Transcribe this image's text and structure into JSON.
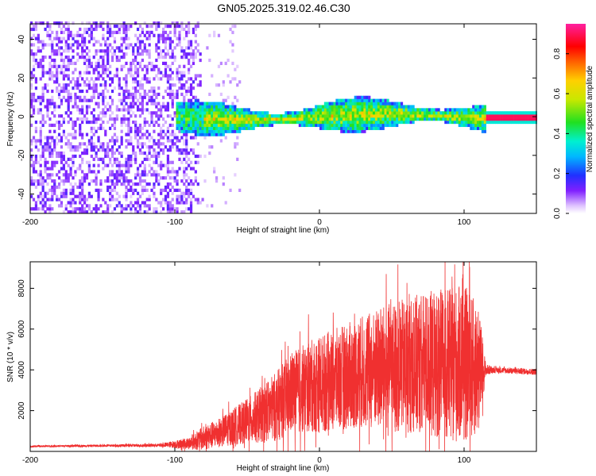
{
  "figure_title": "GN05.2025.319.02.46.C30",
  "chart_data": [
    {
      "type": "heatmap",
      "title": "GN05.2025.319.02.46.C30",
      "xlabel": "Height of straight line (km)",
      "ylabel": "Frequency (Hz)",
      "xlim": [
        -200,
        150
      ],
      "ylim": [
        -50,
        48
      ],
      "x_ticks": [
        -200,
        -100,
        0,
        100
      ],
      "x_tick_labels": [
        "-200",
        "-100",
        "0",
        "100"
      ],
      "y_ticks": [
        -40,
        -20,
        0,
        20,
        40
      ],
      "y_tick_labels": [
        "-40",
        "-20",
        "0",
        "20",
        "40"
      ],
      "colorbar": {
        "label": "Normalized spectral amplitude",
        "range": [
          0,
          0.95
        ],
        "ticks": [
          0.0,
          0.2,
          0.4,
          0.6,
          0.8
        ],
        "tick_labels": [
          "0.0",
          "0.2",
          "0.4",
          "0.6",
          "0.8"
        ],
        "colormap": "rainbow (white-violet-blue-cyan-green-yellow-orange-red-magenta)"
      },
      "description_regions": [
        {
          "x_range": [
            -200,
            -80
          ],
          "freq_range": [
            -50,
            48
          ],
          "amplitude": 0.05,
          "pattern": "broadband noise"
        },
        {
          "x_range": [
            -100,
            115
          ],
          "freq_center": 0,
          "freq_halfwidth": 6,
          "amplitude": 0.3,
          "pattern": "signal band"
        },
        {
          "x_range": [
            115,
            150
          ],
          "freq_center": 0,
          "freq_halfwidth": 1.5,
          "amplitude": 0.95,
          "pattern": "strong narrow line"
        }
      ]
    },
    {
      "type": "line",
      "xlabel": "Height of straight line (km)",
      "ylabel": "SNR (10 * v/v)",
      "xlim": [
        -200,
        150
      ],
      "ylim": [
        0,
        9300
      ],
      "x_ticks": [
        -200,
        -100,
        0,
        100
      ],
      "x_tick_labels": [
        "-200",
        "-100",
        "0",
        "100"
      ],
      "y_ticks": [
        2000,
        4000,
        6000,
        8000
      ],
      "y_tick_labels": [
        "2000",
        "4000",
        "6000",
        "8000"
      ],
      "series": [
        {
          "name": "SNR",
          "color": "#f03030",
          "envelope_x": [
            -200,
            -150,
            -110,
            -90,
            -80,
            -70,
            -60,
            -50,
            -40,
            -30,
            -20,
            -10,
            0,
            10,
            20,
            30,
            40,
            50,
            60,
            70,
            80,
            90,
            100,
            110,
            115,
            120,
            150
          ],
          "envelope_mean": [
            250,
            280,
            300,
            400,
            650,
            900,
            1200,
            1500,
            1800,
            2200,
            2800,
            3100,
            3300,
            3500,
            3700,
            3900,
            4000,
            4100,
            4200,
            4300,
            4300,
            4200,
            4300,
            4000,
            4000,
            4000,
            3900
          ],
          "envelope_amplitude": [
            40,
            60,
            80,
            300,
            600,
            700,
            900,
            1100,
            1400,
            1700,
            2000,
            2200,
            2400,
            2500,
            2600,
            2800,
            3000,
            3200,
            3300,
            3500,
            3600,
            3800,
            3900,
            3200,
            300,
            150,
            150
          ]
        }
      ]
    }
  ]
}
